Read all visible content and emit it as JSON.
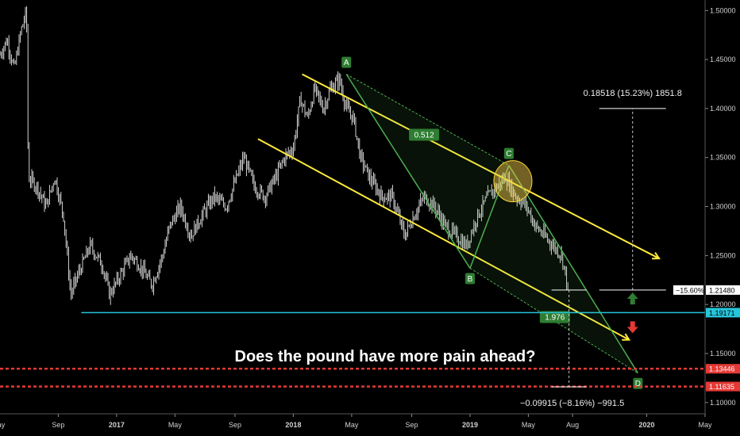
{
  "chart_data": {
    "type": "candlestick",
    "title": "Does the pound have more pain ahead?",
    "x_ticks": [
      {
        "label": "May",
        "t": 2016.33,
        "bold": false
      },
      {
        "label": "Sep",
        "t": 2016.67,
        "bold": false
      },
      {
        "label": "2017",
        "t": 2017.0,
        "bold": true
      },
      {
        "label": "May",
        "t": 2017.33,
        "bold": false
      },
      {
        "label": "Sep",
        "t": 2017.67,
        "bold": false
      },
      {
        "label": "2018",
        "t": 2018.0,
        "bold": true
      },
      {
        "label": "May",
        "t": 2018.33,
        "bold": false
      },
      {
        "label": "Sep",
        "t": 2018.67,
        "bold": false
      },
      {
        "label": "2019",
        "t": 2019.0,
        "bold": true
      },
      {
        "label": "May",
        "t": 2019.33,
        "bold": false
      },
      {
        "label": "Aug",
        "t": 2019.58,
        "bold": false
      },
      {
        "label": "2020",
        "t": 2020.0,
        "bold": true
      },
      {
        "label": "May",
        "t": 2020.33,
        "bold": false
      }
    ],
    "y_ticks": [
      "1.10000",
      "1.15000",
      "1.20000",
      "1.25000",
      "1.30000",
      "1.35000",
      "1.40000",
      "1.45000",
      "1.50000"
    ],
    "y_range": [
      1.0885,
      1.5075
    ],
    "x_range": [
      2016.34,
      2020.33
    ],
    "price_path": [
      [
        2016.34,
        1.455
      ],
      [
        2016.38,
        1.47
      ],
      [
        2016.42,
        1.44
      ],
      [
        2016.46,
        1.48
      ],
      [
        2016.49,
        1.5
      ],
      [
        2016.5,
        1.33
      ],
      [
        2016.55,
        1.32
      ],
      [
        2016.6,
        1.3
      ],
      [
        2016.65,
        1.33
      ],
      [
        2016.7,
        1.29
      ],
      [
        2016.74,
        1.21
      ],
      [
        2016.78,
        1.23
      ],
      [
        2016.85,
        1.26
      ],
      [
        2016.92,
        1.24
      ],
      [
        2016.96,
        1.21
      ],
      [
        2017.02,
        1.23
      ],
      [
        2017.08,
        1.25
      ],
      [
        2017.13,
        1.24
      ],
      [
        2017.2,
        1.22
      ],
      [
        2017.26,
        1.25
      ],
      [
        2017.3,
        1.28
      ],
      [
        2017.36,
        1.3
      ],
      [
        2017.42,
        1.27
      ],
      [
        2017.48,
        1.29
      ],
      [
        2017.55,
        1.31
      ],
      [
        2017.62,
        1.3
      ],
      [
        2017.68,
        1.33
      ],
      [
        2017.72,
        1.35
      ],
      [
        2017.78,
        1.32
      ],
      [
        2017.84,
        1.31
      ],
      [
        2017.9,
        1.33
      ],
      [
        2017.95,
        1.35
      ],
      [
        2018.0,
        1.36
      ],
      [
        2018.04,
        1.41
      ],
      [
        2018.08,
        1.39
      ],
      [
        2018.12,
        1.42
      ],
      [
        2018.17,
        1.4
      ],
      [
        2018.21,
        1.42
      ],
      [
        2018.26,
        1.43
      ],
      [
        2018.3,
        1.4
      ],
      [
        2018.34,
        1.39
      ],
      [
        2018.38,
        1.35
      ],
      [
        2018.43,
        1.33
      ],
      [
        2018.5,
        1.31
      ],
      [
        2018.56,
        1.31
      ],
      [
        2018.63,
        1.27
      ],
      [
        2018.68,
        1.29
      ],
      [
        2018.74,
        1.31
      ],
      [
        2018.8,
        1.3
      ],
      [
        2018.86,
        1.28
      ],
      [
        2018.92,
        1.27
      ],
      [
        2018.98,
        1.26
      ],
      [
        2019.04,
        1.29
      ],
      [
        2019.1,
        1.31
      ],
      [
        2019.15,
        1.32
      ],
      [
        2019.2,
        1.33
      ],
      [
        2019.26,
        1.31
      ],
      [
        2019.32,
        1.3
      ],
      [
        2019.37,
        1.28
      ],
      [
        2019.42,
        1.27
      ],
      [
        2019.47,
        1.26
      ],
      [
        2019.52,
        1.25
      ],
      [
        2019.56,
        1.21
      ]
    ],
    "channel_upper": [
      [
        2018.05,
        1.435
      ],
      [
        2020.07,
        1.247
      ]
    ],
    "channel_lower": [
      [
        2017.8,
        1.369
      ],
      [
        2019.9,
        1.164
      ]
    ],
    "abcd": [
      {
        "label": "A",
        "t": 2018.3,
        "price": 1.435
      },
      {
        "label": "B",
        "t": 2019.0,
        "price": 1.237
      },
      {
        "label": "C",
        "t": 2019.22,
        "price": 1.342
      },
      {
        "label": "D",
        "t": 2019.95,
        "price": 1.13
      }
    ],
    "fib_labels": [
      {
        "text": "0.512",
        "t": 2018.74,
        "price": 1.372
      },
      {
        "text": "1.976",
        "t": 2019.48,
        "price": 1.186
      }
    ],
    "support_lines": [
      {
        "price": 1.19171,
        "label": "1.19171",
        "color": "#26c6da",
        "t_start": 2016.8,
        "style": "solid"
      },
      {
        "price": 1.13446,
        "label": "1.13446",
        "color": "#e53935",
        "style": "dashed"
      },
      {
        "price": 1.11635,
        "label": "1.11635",
        "color": "#e53935",
        "style": "dashed"
      }
    ],
    "current_price": {
      "price": 1.2148,
      "label": "1.21480",
      "pct_label": "−15.60%"
    },
    "measure_up": {
      "text": "0.18518 (15.23%) 1851.8",
      "t": 2019.92,
      "from": 1.2148,
      "to": 1.4
    },
    "measure_down": {
      "text": "−0.09915 (−8.16%) −991.5",
      "t": 2019.56,
      "from": 1.2148,
      "to": 1.116
    },
    "colors": {
      "candles": "#e8e8e8",
      "channel": "#ffeb3b",
      "abcd": "#4caf50",
      "arrow_up": "#2e7d32",
      "arrow_down": "#e53935"
    }
  }
}
